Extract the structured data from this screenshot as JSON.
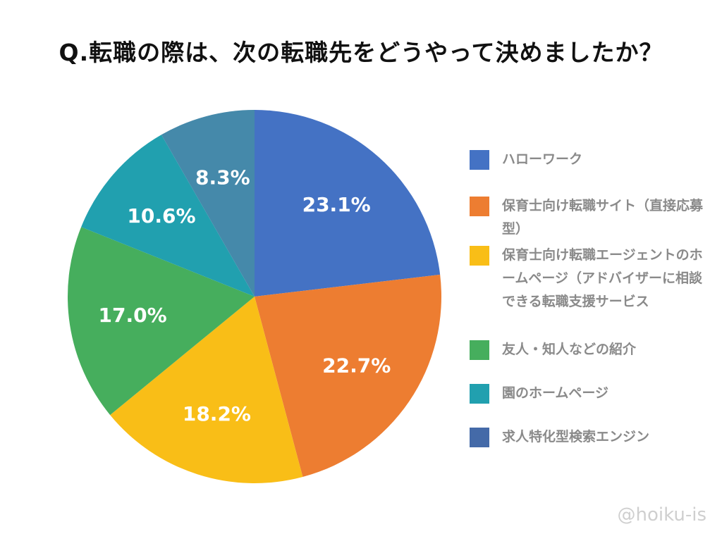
{
  "title": "Q.転職の際は、次の転職先をどうやって決めましたか？",
  "watermark": "@hoiku-is",
  "chart_data": {
    "type": "pie",
    "title": "Q.転職の際は、次の転職先をどうやって決めましたか？",
    "legend_position": "right",
    "slices": [
      {
        "label": "ハローワーク",
        "value": 23.1,
        "value_label": "23.1%",
        "color": "#4472C4"
      },
      {
        "label": "保育士向け転職サイト（直接応募型）",
        "value": 22.7,
        "value_label": "22.7%",
        "color": "#ED7D31"
      },
      {
        "label": "保育士向け転職エージェントのホームページ（アドバイザーに相談できる転職支援サービス",
        "value": 18.2,
        "value_label": "18.2%",
        "color": "#F9BE17"
      },
      {
        "label": "友人・知人などの紹介",
        "value": 17.0,
        "value_label": "17.0%",
        "color": "#46AE5D"
      },
      {
        "label": "園のホームページ",
        "value": 10.6,
        "value_label": "10.6%",
        "color": "#21A0AF"
      },
      {
        "label": "求人特化型検索エンジン",
        "value": 8.3,
        "value_label": "8.3%",
        "color": "#4589AA"
      }
    ]
  },
  "legend": {
    "items": [
      {
        "label": "ハローワーク",
        "color": "#4472C4"
      },
      {
        "label": "保育士向け転職サイト（直接応募型）",
        "color": "#ED7D31"
      },
      {
        "label": "保育士向け転職エージェントのホームページ（アドバイザーに相談できる転職支援サービス",
        "color": "#F9BE17"
      },
      {
        "label": "友人・知人などの紹介",
        "color": "#46AE5D"
      },
      {
        "label": "園のホームページ",
        "color": "#21A0AF"
      },
      {
        "label": "求人特化型検索エンジン",
        "color": "#446AA8"
      }
    ]
  }
}
